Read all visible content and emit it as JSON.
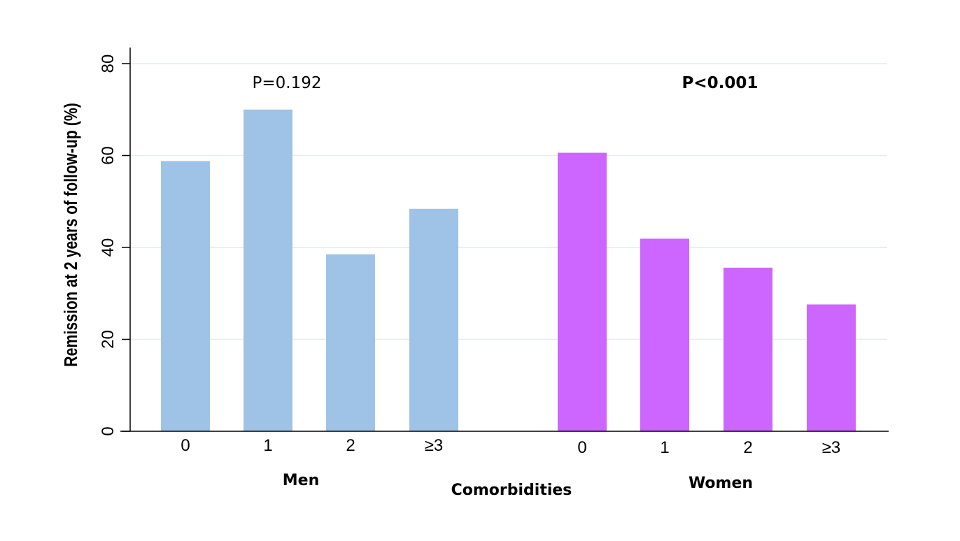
{
  "chart_data": {
    "type": "bar",
    "ylabel": "Remission at 2 years of follow-up (%)",
    "xlabel": "Comorbidities",
    "ylim": [
      0,
      80
    ],
    "yticks": [
      0,
      20,
      40,
      60,
      80
    ],
    "grid": true,
    "groups": [
      {
        "name": "Men",
        "color": "#9fc3e6",
        "categories": [
          "0",
          "1",
          "2",
          "≥3"
        ],
        "values": [
          58.8,
          70.0,
          38.5,
          48.4
        ],
        "annotation": "P=0.192",
        "annotation_bold": false
      },
      {
        "name": "Women",
        "color": "#cc66ff",
        "categories": [
          "0",
          "1",
          "2",
          "≥3"
        ],
        "values": [
          60.6,
          41.9,
          35.6,
          27.6
        ],
        "annotation": "P<0.001",
        "annotation_bold": true
      }
    ]
  }
}
